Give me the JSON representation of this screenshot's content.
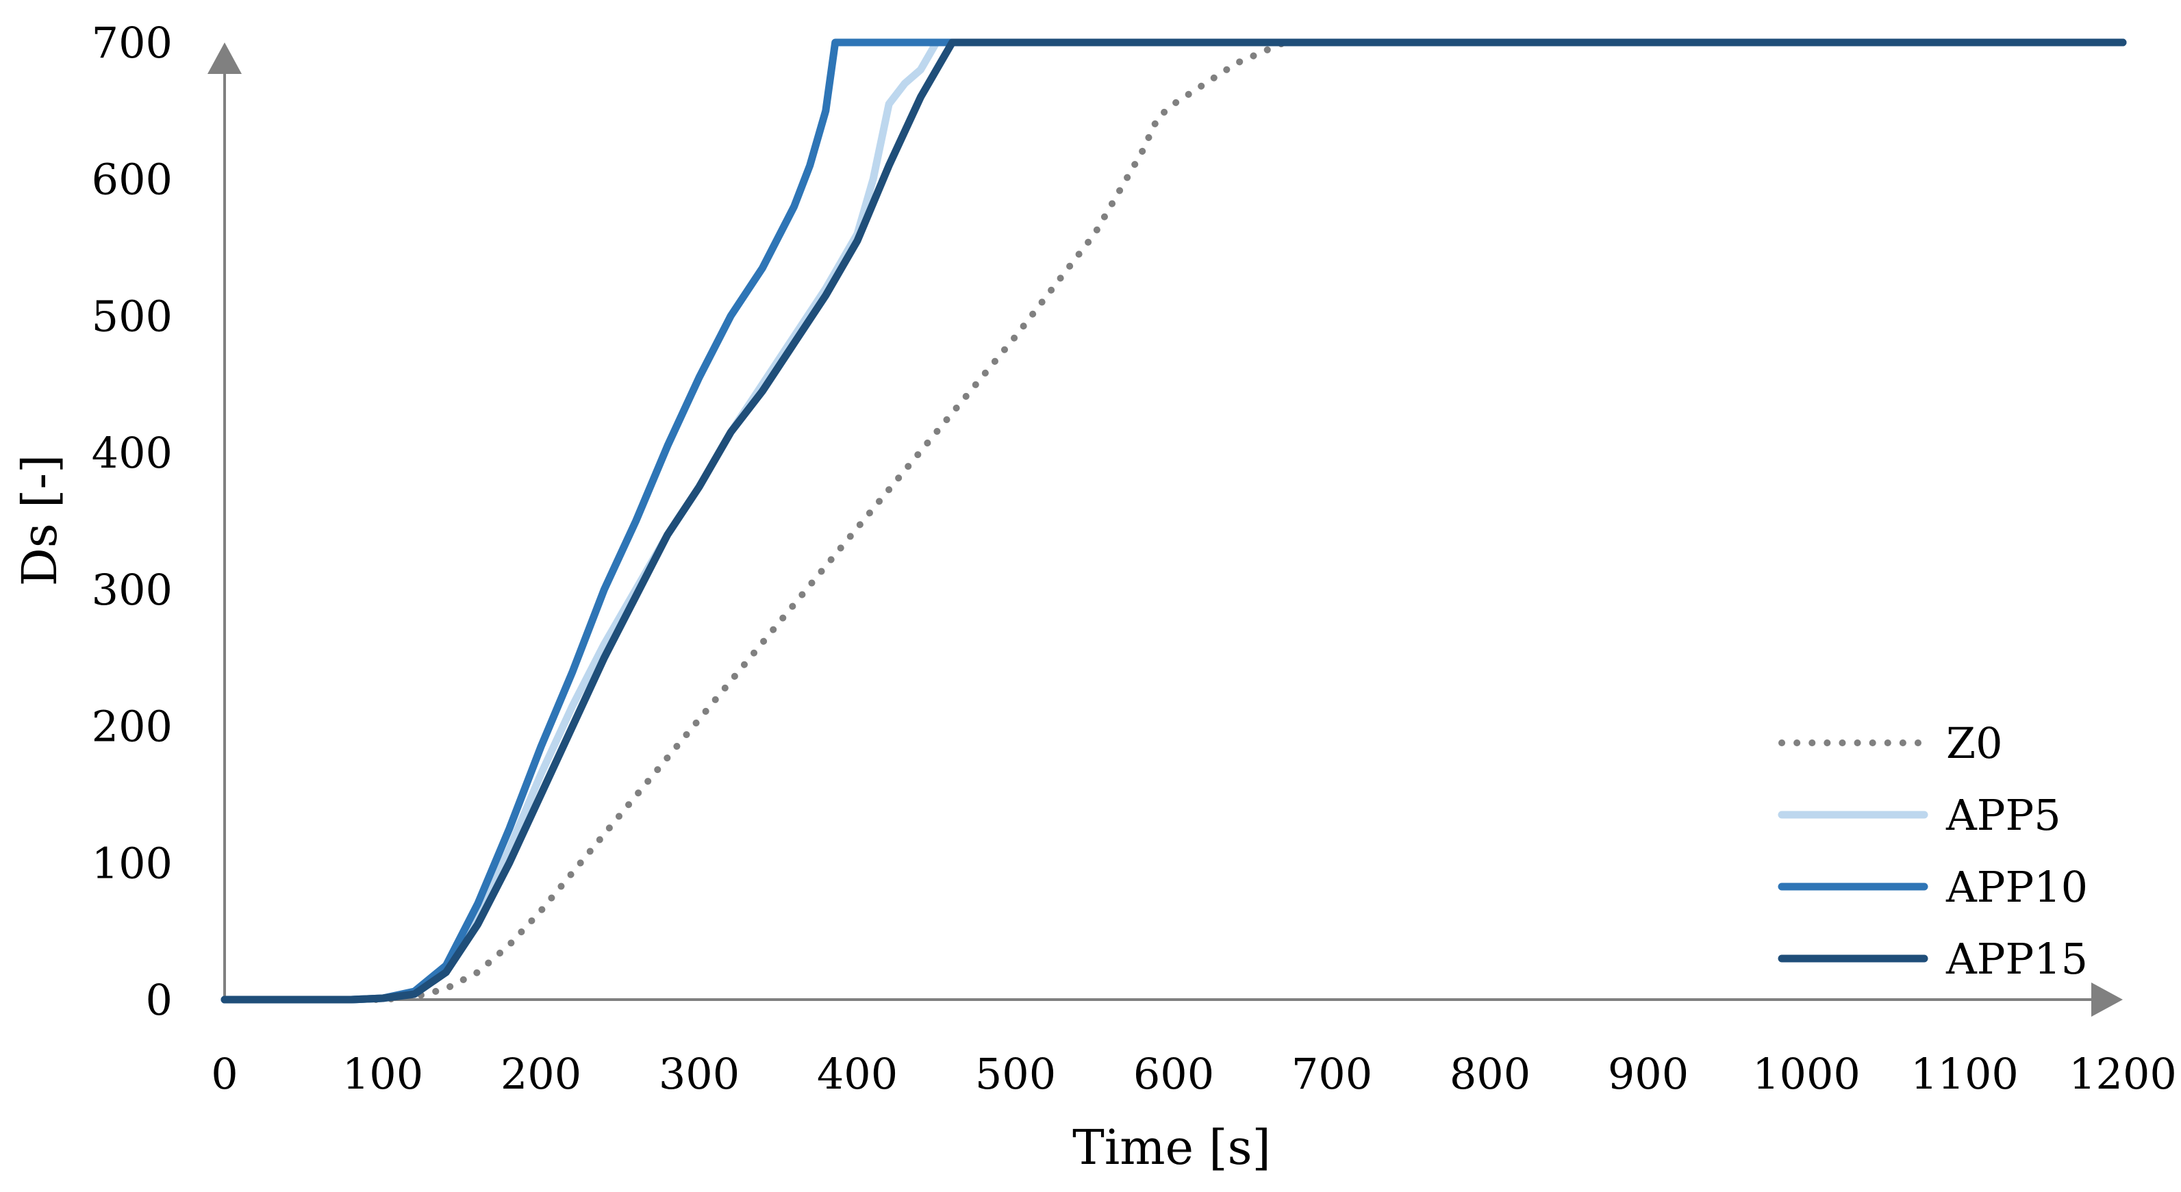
{
  "chart_data": {
    "type": "line",
    "title": "",
    "xlabel": "Time [s]",
    "ylabel": "Ds [-]",
    "xlim": [
      0,
      1200
    ],
    "ylim": [
      0,
      700
    ],
    "xticks": [
      0,
      100,
      200,
      300,
      400,
      500,
      600,
      700,
      800,
      900,
      1000,
      1100,
      1200
    ],
    "yticks": [
      0,
      100,
      200,
      300,
      400,
      500,
      600,
      700
    ],
    "xtick_labels": [
      "0",
      "100",
      "200",
      "300",
      "400",
      "500",
      "600",
      "700",
      "800",
      "900",
      "1000",
      "1100",
      "1200"
    ],
    "ytick_labels": [
      "0",
      "100",
      "200",
      "300",
      "400",
      "500",
      "600",
      "700"
    ],
    "grid": false,
    "legend_position": "bottom-right",
    "series": [
      {
        "name": "Z0",
        "color": "#808080",
        "style": "dotted",
        "x": [
          0,
          100,
          120,
          140,
          160,
          180,
          200,
          250,
          300,
          350,
          400,
          450,
          500,
          550,
          580,
          590,
          600,
          620,
          640,
          660,
          670,
          700,
          800,
          900,
          1000,
          1100,
          1200
        ],
        "y": [
          0,
          0,
          2,
          8,
          20,
          40,
          65,
          135,
          205,
          275,
          345,
          415,
          485,
          560,
          620,
          645,
          655,
          670,
          685,
          695,
          700,
          700,
          700,
          700,
          700,
          700,
          700
        ]
      },
      {
        "name": "APP5",
        "color": "#BDD7EE",
        "style": "solid",
        "x": [
          0,
          80,
          100,
          120,
          140,
          160,
          180,
          200,
          220,
          240,
          260,
          280,
          300,
          320,
          340,
          360,
          380,
          400,
          410,
          420,
          430,
          440,
          450,
          460,
          500,
          600,
          700,
          800,
          900,
          1000,
          1100,
          1200
        ],
        "y": [
          0,
          0,
          1,
          5,
          22,
          60,
          110,
          165,
          215,
          260,
          300,
          340,
          375,
          415,
          450,
          485,
          520,
          560,
          600,
          655,
          670,
          680,
          700,
          700,
          700,
          700,
          700,
          700,
          700,
          700,
          700,
          700
        ],
        "hide_x_from": 0
      },
      {
        "name": "APP10",
        "color": "#2E75B6",
        "style": "solid",
        "x": [
          0,
          80,
          100,
          120,
          140,
          160,
          180,
          200,
          220,
          240,
          260,
          280,
          300,
          320,
          340,
          360,
          370,
          380,
          386,
          390,
          400,
          500,
          600,
          700,
          800,
          900,
          1000,
          1100,
          1200
        ],
        "y": [
          0,
          0,
          1,
          6,
          25,
          70,
          125,
          185,
          240,
          300,
          350,
          405,
          455,
          500,
          535,
          580,
          610,
          650,
          700,
          700,
          700,
          700,
          700,
          700,
          700,
          700,
          700,
          700,
          700
        ]
      },
      {
        "name": "APP15",
        "color": "#1F4E79",
        "style": "solid",
        "x": [
          0,
          80,
          100,
          120,
          140,
          160,
          180,
          200,
          220,
          240,
          260,
          280,
          300,
          320,
          340,
          360,
          380,
          400,
          420,
          440,
          450,
          460,
          500,
          600,
          700,
          800,
          900,
          1000,
          1100,
          1200
        ],
        "y": [
          0,
          0,
          1,
          4,
          20,
          55,
          100,
          150,
          200,
          250,
          295,
          340,
          375,
          415,
          445,
          480,
          515,
          555,
          610,
          660,
          680,
          700,
          700,
          700,
          700,
          700,
          700,
          700,
          700,
          700
        ]
      }
    ]
  }
}
